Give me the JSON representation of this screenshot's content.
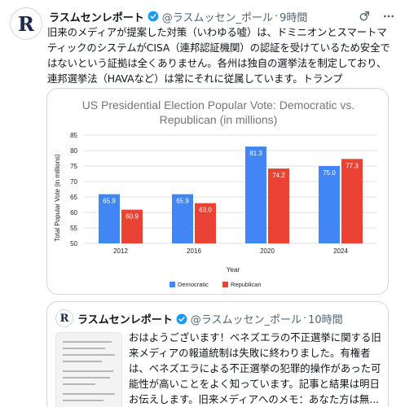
{
  "tweet": {
    "avatar_letter": "R",
    "author_name": "ラスムセンレポート",
    "handle": "@ラスムッセン_ポール",
    "separator": "·",
    "time": "9時間",
    "text_lines": [
      "旧来のメディアが提案した対策（いわゆる嘘）は、ドミニオンとスマートマ",
      "ティックのシステムがCISA（連邦認証機関）の認証を受けているため安全で",
      "はないという証拠は全くありません。各州は独自の選挙法を制定しており、",
      "連邦選挙法（HAVAなど）は常にそれに従属しています。トランプ"
    ]
  },
  "icons": {
    "verified": "verified-badge-icon",
    "grok": "grok-icon",
    "more": "more-options-icon"
  },
  "colors": {
    "democratic": "#4285f4",
    "republican": "#ea4335",
    "verified": "#1d9bf0"
  },
  "chart_data": {
    "type": "bar",
    "title": "US Presidential Election Popular Vote: Democratic vs. Republican (in millions)",
    "title_lines": [
      "US Presidential Election Popular Vote: Democratic vs.",
      "Republican (in millions)"
    ],
    "xlabel": "Year",
    "ylabel": "Total Popular Vote (in millions)",
    "categories": [
      "2012",
      "2016",
      "2020",
      "2024"
    ],
    "series": [
      {
        "name": "Democratic",
        "values": [
          65.9,
          65.9,
          81.3,
          75.0
        ],
        "labels": [
          "65.9",
          "65.9",
          "81.3",
          "75.0"
        ]
      },
      {
        "name": "Republican",
        "values": [
          60.9,
          63.0,
          74.2,
          77.3
        ],
        "labels": [
          "60.9",
          "63.0",
          "74.2",
          "77.3"
        ]
      }
    ],
    "ylim": [
      50,
      85
    ],
    "yticks": [
      "50",
      "55",
      "60",
      "65",
      "70",
      "75",
      "80",
      "85"
    ],
    "grid": true,
    "legend": "bottom"
  },
  "quote": {
    "avatar_letter": "R",
    "author_name": "ラスムセンレポート",
    "handle": "@ラスムッセン_ポール",
    "separator": "·",
    "time": "10時間",
    "text_lines": [
      "おはようございます！ベネズエラの不正選挙に関する旧",
      "来メディアの報道統制は失敗に終わりました。有権者",
      "は、ベネズエラによる不正選挙の犯罪的操作があった可",
      "能性が高いことをよく知っています。記事と結果は明日",
      "お伝えします。旧来メディアへのメモ：あなた方は無..."
    ]
  }
}
